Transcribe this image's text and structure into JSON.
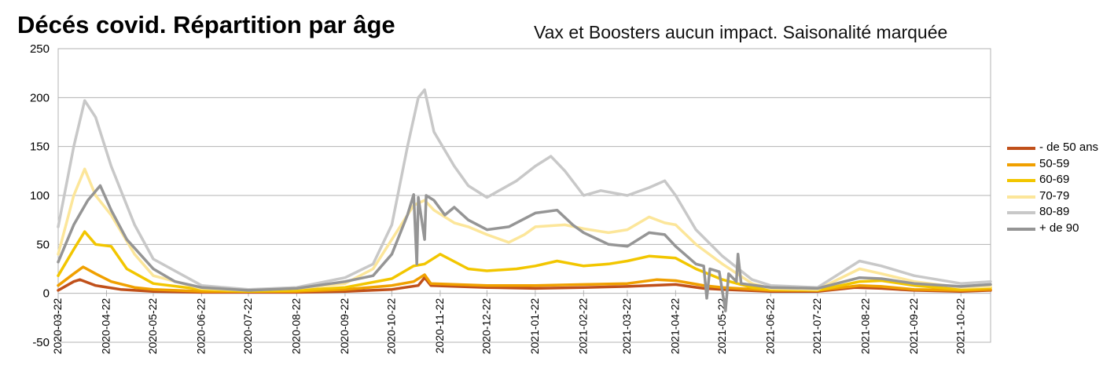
{
  "title": "Décés covid. Répartition par âge",
  "subtitle": "Vax et Boosters aucun impact. Saisonalité marquée",
  "chart_data": {
    "type": "line",
    "ylim": [
      -50,
      250
    ],
    "yticks": [
      250,
      200,
      150,
      100,
      50,
      0,
      -50
    ],
    "x_start": "2020-03-22",
    "x_end": "2021-11-10",
    "x_tick_labels": [
      "2020-03-22",
      "2020-04-22",
      "2020-05-22",
      "2020-06-22",
      "2020-07-22",
      "2020-08-22",
      "2020-09-22",
      "2020-10-22",
      "2020-11-22",
      "2020-12-22",
      "2021-01-22",
      "2021-02-22",
      "2021-03-22",
      "2021-04-22",
      "2021-05-22",
      "2021-06-22",
      "2021-07-22",
      "2021-08-22",
      "2021-09-22",
      "2021-10-22"
    ],
    "grid": true,
    "legend_position": "right",
    "series": [
      {
        "name": "- de 50 ans",
        "color": "#c0501a",
        "points": [
          [
            "2020-03-22",
            3
          ],
          [
            "2020-04-01",
            12
          ],
          [
            "2020-04-05",
            14
          ],
          [
            "2020-04-15",
            8
          ],
          [
            "2020-05-01",
            4
          ],
          [
            "2020-05-22",
            2
          ],
          [
            "2020-06-22",
            1
          ],
          [
            "2020-08-22",
            1
          ],
          [
            "2020-09-22",
            2
          ],
          [
            "2020-10-22",
            4
          ],
          [
            "2020-11-08",
            8
          ],
          [
            "2020-11-12",
            16
          ],
          [
            "2020-11-16",
            8
          ],
          [
            "2020-12-22",
            6
          ],
          [
            "2021-01-22",
            5
          ],
          [
            "2021-02-22",
            6
          ],
          [
            "2021-03-22",
            7
          ],
          [
            "2021-04-22",
            9
          ],
          [
            "2021-05-10",
            5
          ],
          [
            "2021-05-22",
            4
          ],
          [
            "2021-06-22",
            2
          ],
          [
            "2021-07-22",
            2
          ],
          [
            "2021-08-15",
            6
          ],
          [
            "2021-09-01",
            5
          ],
          [
            "2021-09-22",
            3
          ],
          [
            "2021-10-22",
            2
          ],
          [
            "2021-11-10",
            3
          ]
        ]
      },
      {
        "name": "50-59",
        "color": "#f0a000",
        "points": [
          [
            "2020-03-22",
            8
          ],
          [
            "2020-04-01",
            20
          ],
          [
            "2020-04-07",
            27
          ],
          [
            "2020-04-15",
            20
          ],
          [
            "2020-04-25",
            12
          ],
          [
            "2020-05-10",
            6
          ],
          [
            "2020-05-22",
            4
          ],
          [
            "2020-06-22",
            2
          ],
          [
            "2020-08-22",
            2
          ],
          [
            "2020-09-22",
            4
          ],
          [
            "2020-10-22",
            8
          ],
          [
            "2020-11-05",
            12
          ],
          [
            "2020-11-12",
            19
          ],
          [
            "2020-11-16",
            10
          ],
          [
            "2020-12-22",
            8
          ],
          [
            "2021-01-22",
            8
          ],
          [
            "2021-02-22",
            9
          ],
          [
            "2021-03-22",
            10
          ],
          [
            "2021-04-10",
            14
          ],
          [
            "2021-04-22",
            13
          ],
          [
            "2021-05-10",
            8
          ],
          [
            "2021-05-22",
            6
          ],
          [
            "2021-06-22",
            3
          ],
          [
            "2021-07-22",
            3
          ],
          [
            "2021-08-18",
            8
          ],
          [
            "2021-09-01",
            7
          ],
          [
            "2021-09-22",
            4
          ],
          [
            "2021-10-22",
            3
          ],
          [
            "2021-11-10",
            4
          ]
        ]
      },
      {
        "name": "60-69",
        "color": "#f2c600",
        "points": [
          [
            "2020-03-22",
            18
          ],
          [
            "2020-04-01",
            45
          ],
          [
            "2020-04-08",
            63
          ],
          [
            "2020-04-15",
            50
          ],
          [
            "2020-04-25",
            48
          ],
          [
            "2020-05-05",
            25
          ],
          [
            "2020-05-22",
            10
          ],
          [
            "2020-06-22",
            4
          ],
          [
            "2020-07-22",
            2
          ],
          [
            "2020-08-22",
            3
          ],
          [
            "2020-09-22",
            6
          ],
          [
            "2020-10-22",
            15
          ],
          [
            "2020-11-05",
            28
          ],
          [
            "2020-11-12",
            30
          ],
          [
            "2020-11-22",
            40
          ],
          [
            "2020-11-28",
            35
          ],
          [
            "2020-12-10",
            25
          ],
          [
            "2020-12-22",
            23
          ],
          [
            "2021-01-10",
            25
          ],
          [
            "2021-01-22",
            28
          ],
          [
            "2021-02-05",
            33
          ],
          [
            "2021-02-22",
            28
          ],
          [
            "2021-03-10",
            30
          ],
          [
            "2021-03-22",
            33
          ],
          [
            "2021-04-05",
            38
          ],
          [
            "2021-04-22",
            36
          ],
          [
            "2021-05-05",
            25
          ],
          [
            "2021-05-22",
            14
          ],
          [
            "2021-06-10",
            6
          ],
          [
            "2021-06-22",
            4
          ],
          [
            "2021-07-22",
            3
          ],
          [
            "2021-08-18",
            12
          ],
          [
            "2021-09-01",
            13
          ],
          [
            "2021-09-22",
            8
          ],
          [
            "2021-10-22",
            4
          ],
          [
            "2021-11-10",
            6
          ]
        ]
      },
      {
        "name": "70-79",
        "color": "#fce69a",
        "points": [
          [
            "2020-03-22",
            40
          ],
          [
            "2020-04-01",
            100
          ],
          [
            "2020-04-08",
            127
          ],
          [
            "2020-04-15",
            100
          ],
          [
            "2020-04-25",
            80
          ],
          [
            "2020-05-10",
            40
          ],
          [
            "2020-05-22",
            18
          ],
          [
            "2020-06-22",
            5
          ],
          [
            "2020-07-22",
            3
          ],
          [
            "2020-08-22",
            5
          ],
          [
            "2020-09-22",
            10
          ],
          [
            "2020-10-10",
            25
          ],
          [
            "2020-10-22",
            55
          ],
          [
            "2020-11-05",
            90
          ],
          [
            "2020-11-12",
            95
          ],
          [
            "2020-11-18",
            85
          ],
          [
            "2020-12-01",
            72
          ],
          [
            "2020-12-10",
            68
          ],
          [
            "2020-12-22",
            60
          ],
          [
            "2021-01-05",
            52
          ],
          [
            "2021-01-15",
            60
          ],
          [
            "2021-01-22",
            68
          ],
          [
            "2021-02-10",
            70
          ],
          [
            "2021-02-22",
            66
          ],
          [
            "2021-03-10",
            62
          ],
          [
            "2021-03-22",
            65
          ],
          [
            "2021-04-05",
            78
          ],
          [
            "2021-04-15",
            72
          ],
          [
            "2021-04-22",
            70
          ],
          [
            "2021-05-05",
            50
          ],
          [
            "2021-05-22",
            30
          ],
          [
            "2021-06-10",
            10
          ],
          [
            "2021-06-22",
            5
          ],
          [
            "2021-07-22",
            4
          ],
          [
            "2021-08-18",
            25
          ],
          [
            "2021-09-01",
            20
          ],
          [
            "2021-09-22",
            12
          ],
          [
            "2021-10-22",
            6
          ],
          [
            "2021-11-10",
            7
          ]
        ]
      },
      {
        "name": "80-89",
        "color": "#c8c8c8",
        "points": [
          [
            "2020-03-22",
            68
          ],
          [
            "2020-04-01",
            150
          ],
          [
            "2020-04-08",
            197
          ],
          [
            "2020-04-15",
            180
          ],
          [
            "2020-04-25",
            130
          ],
          [
            "2020-05-10",
            70
          ],
          [
            "2020-05-22",
            35
          ],
          [
            "2020-06-22",
            8
          ],
          [
            "2020-07-22",
            4
          ],
          [
            "2020-08-22",
            6
          ],
          [
            "2020-09-22",
            16
          ],
          [
            "2020-10-10",
            30
          ],
          [
            "2020-10-22",
            70
          ],
          [
            "2020-11-01",
            150
          ],
          [
            "2020-11-08",
            200
          ],
          [
            "2020-11-12",
            208
          ],
          [
            "2020-11-18",
            165
          ],
          [
            "2020-12-01",
            130
          ],
          [
            "2020-12-10",
            110
          ],
          [
            "2020-12-22",
            98
          ],
          [
            "2021-01-10",
            115
          ],
          [
            "2021-01-22",
            130
          ],
          [
            "2021-02-01",
            140
          ],
          [
            "2021-02-10",
            125
          ],
          [
            "2021-02-22",
            100
          ],
          [
            "2021-03-05",
            105
          ],
          [
            "2021-03-22",
            100
          ],
          [
            "2021-04-05",
            108
          ],
          [
            "2021-04-15",
            115
          ],
          [
            "2021-04-22",
            100
          ],
          [
            "2021-05-05",
            65
          ],
          [
            "2021-05-22",
            38
          ],
          [
            "2021-06-10",
            14
          ],
          [
            "2021-06-22",
            8
          ],
          [
            "2021-07-22",
            6
          ],
          [
            "2021-08-18",
            33
          ],
          [
            "2021-09-01",
            28
          ],
          [
            "2021-09-22",
            18
          ],
          [
            "2021-10-22",
            10
          ],
          [
            "2021-11-10",
            12
          ]
        ]
      },
      {
        "name": "+ de 90",
        "color": "#959595",
        "points": [
          [
            "2020-03-22",
            32
          ],
          [
            "2020-04-01",
            70
          ],
          [
            "2020-04-10",
            95
          ],
          [
            "2020-04-18",
            110
          ],
          [
            "2020-04-25",
            85
          ],
          [
            "2020-05-05",
            55
          ],
          [
            "2020-05-22",
            25
          ],
          [
            "2020-06-05",
            12
          ],
          [
            "2020-06-22",
            6
          ],
          [
            "2020-07-22",
            3
          ],
          [
            "2020-08-22",
            5
          ],
          [
            "2020-09-22",
            12
          ],
          [
            "2020-10-10",
            18
          ],
          [
            "2020-10-22",
            40
          ],
          [
            "2020-11-01",
            80
          ],
          [
            "2020-11-05",
            101
          ],
          [
            "2020-11-07",
            30
          ],
          [
            "2020-11-08",
            98
          ],
          [
            "2020-11-12",
            55
          ],
          [
            "2020-11-13",
            100
          ],
          [
            "2020-11-18",
            95
          ],
          [
            "2020-11-25",
            80
          ],
          [
            "2020-12-01",
            88
          ],
          [
            "2020-12-10",
            75
          ],
          [
            "2020-12-22",
            65
          ],
          [
            "2021-01-05",
            68
          ],
          [
            "2021-01-22",
            82
          ],
          [
            "2021-02-05",
            85
          ],
          [
            "2021-02-15",
            70
          ],
          [
            "2021-02-22",
            62
          ],
          [
            "2021-03-10",
            50
          ],
          [
            "2021-03-22",
            48
          ],
          [
            "2021-04-05",
            62
          ],
          [
            "2021-04-15",
            60
          ],
          [
            "2021-04-22",
            48
          ],
          [
            "2021-05-05",
            30
          ],
          [
            "2021-05-10",
            28
          ],
          [
            "2021-05-12",
            -5
          ],
          [
            "2021-05-14",
            25
          ],
          [
            "2021-05-20",
            22
          ],
          [
            "2021-05-24",
            -18
          ],
          [
            "2021-05-26",
            20
          ],
          [
            "2021-05-31",
            12
          ],
          [
            "2021-06-01",
            40
          ],
          [
            "2021-06-03",
            10
          ],
          [
            "2021-06-22",
            6
          ],
          [
            "2021-07-22",
            5
          ],
          [
            "2021-08-18",
            16
          ],
          [
            "2021-09-01",
            15
          ],
          [
            "2021-09-22",
            10
          ],
          [
            "2021-10-22",
            7
          ],
          [
            "2021-11-10",
            9
          ]
        ]
      }
    ]
  }
}
